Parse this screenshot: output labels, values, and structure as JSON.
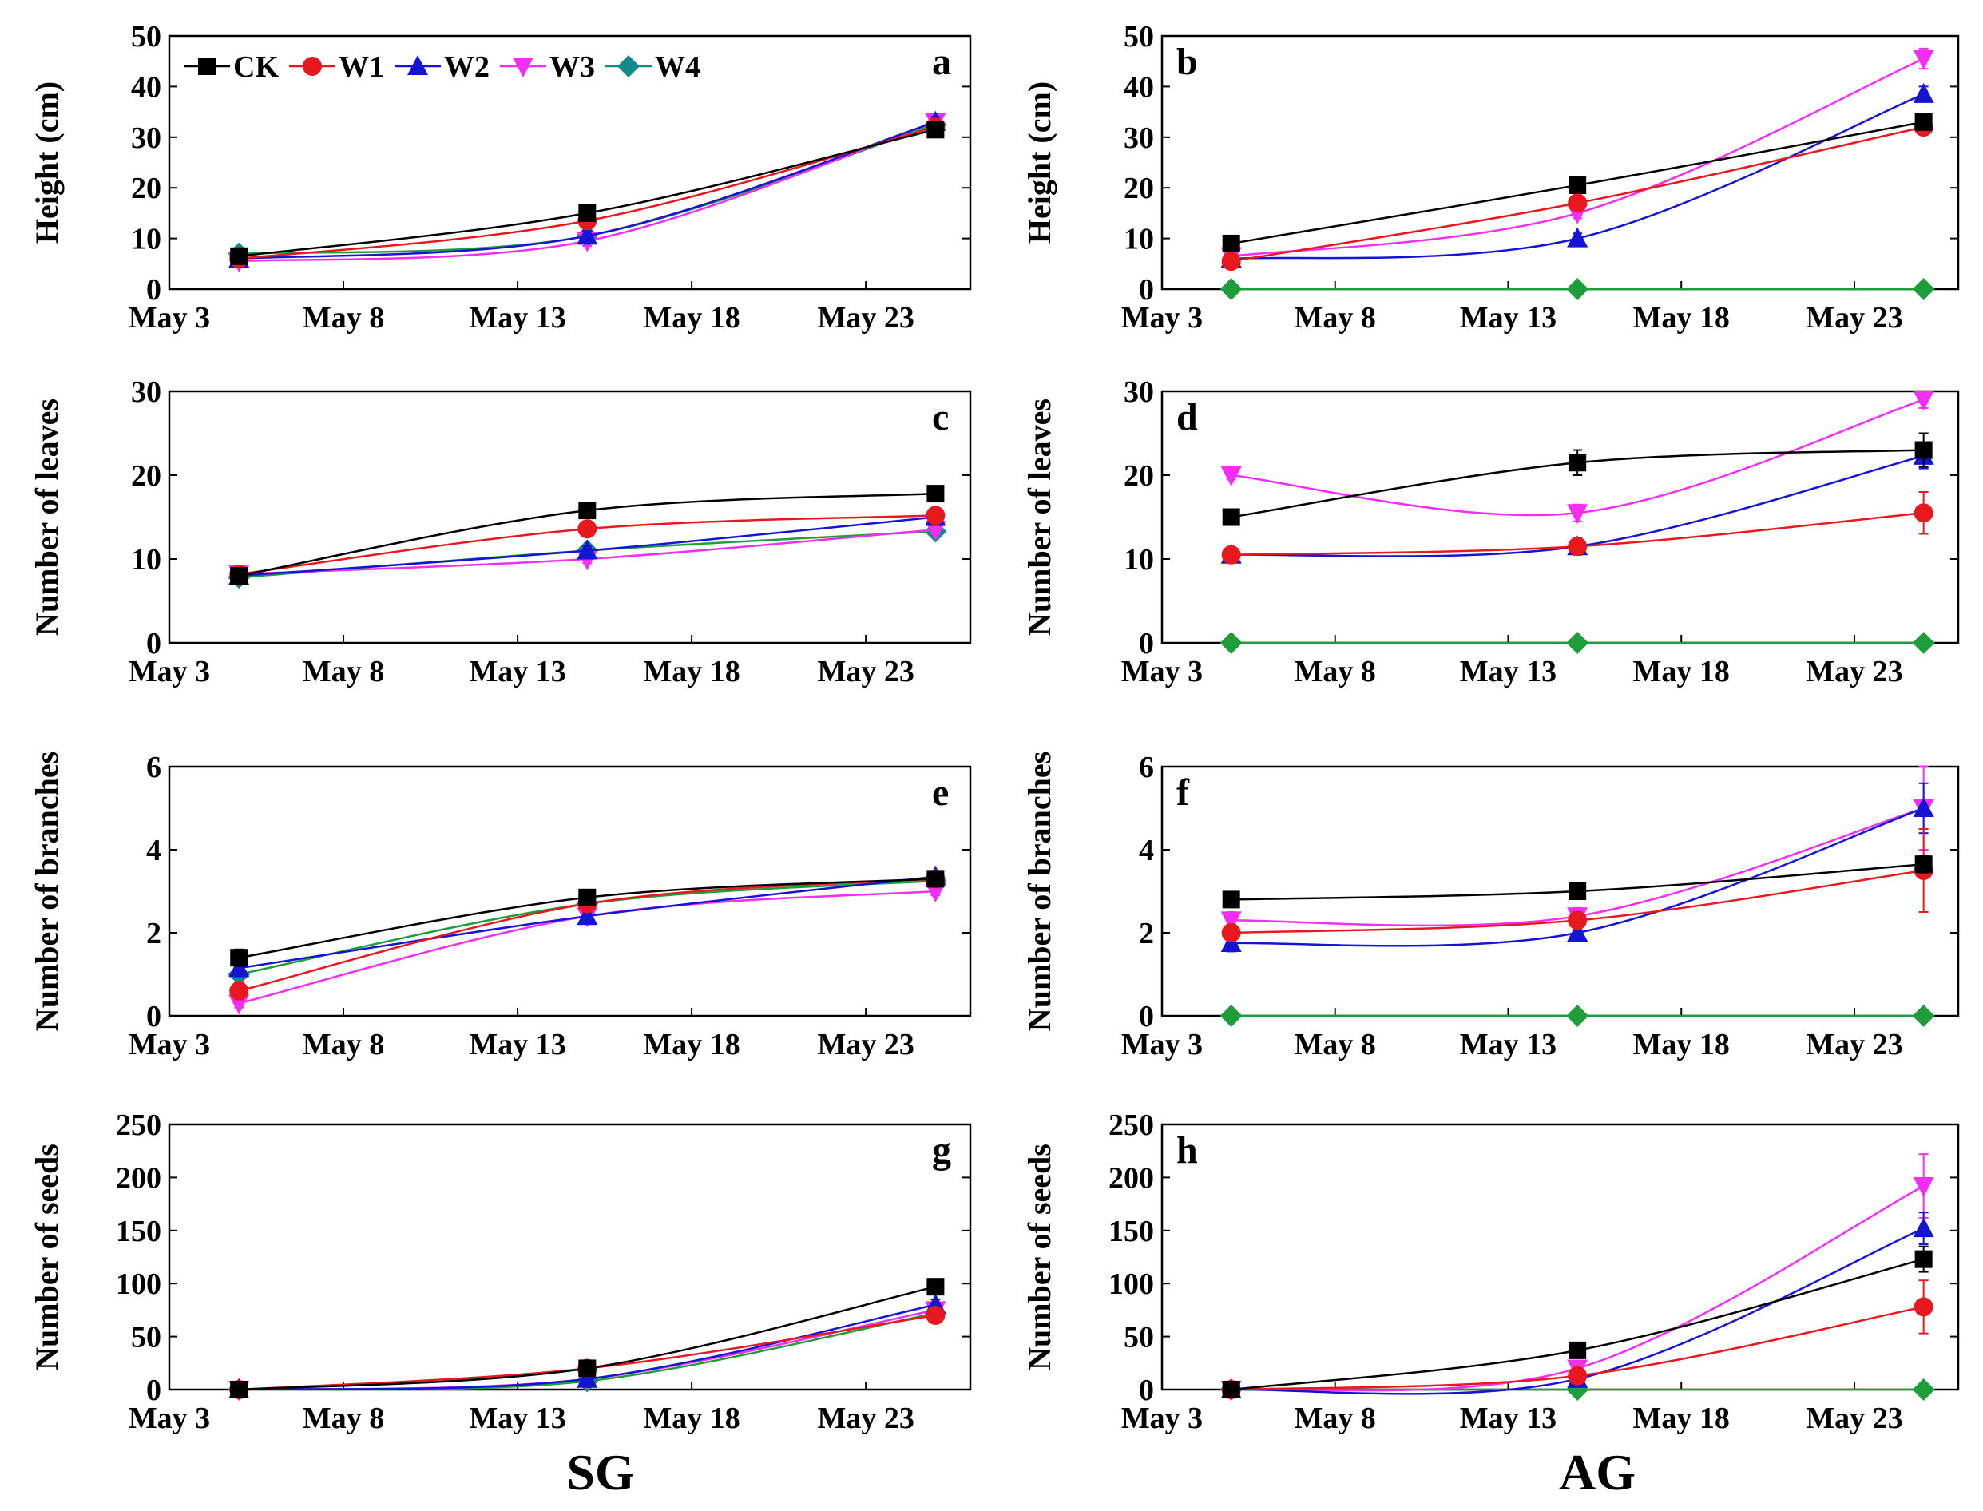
{
  "series_styles": [
    {
      "name": "CK",
      "color": "#000000",
      "marker": "square"
    },
    {
      "name": "W1",
      "color": "#e8191e",
      "marker": "circle"
    },
    {
      "name": "W2",
      "color": "#1414d2",
      "marker": "triangle-up"
    },
    {
      "name": "W3",
      "color": "#f22ef2",
      "marker": "triangle-down"
    },
    {
      "name": "W4",
      "color": "#138a8a",
      "marker": "diamond"
    }
  ],
  "group_labels": {
    "left": "SG",
    "right": "AG"
  },
  "chart_data": [
    {
      "type": "line",
      "panel": "a",
      "column": "left",
      "row": 0,
      "ylabel": "Height (cm)",
      "xlabel": "",
      "xlim": [
        3,
        26
      ],
      "ylim": [
        0,
        50
      ],
      "xticks": [
        3,
        8,
        13,
        18,
        23
      ],
      "xticklabels": [
        "May 3",
        "May 8",
        "May 13",
        "May 18",
        "May 23"
      ],
      "yticks": [
        0,
        10,
        20,
        30,
        40,
        50
      ],
      "yticklabels": [
        "0",
        "10",
        "20",
        "30",
        "40",
        "50"
      ],
      "legend": "top-left",
      "x": [
        5,
        15,
        25
      ],
      "series": [
        {
          "name": "CK",
          "values": [
            6.5,
            15,
            31.5
          ],
          "errors": [
            0.5,
            1,
            1
          ]
        },
        {
          "name": "W1",
          "values": [
            6,
            13.5,
            32
          ],
          "errors": [
            0.5,
            1,
            1
          ]
        },
        {
          "name": "W2",
          "values": [
            6,
            10.5,
            33
          ],
          "errors": [
            0.5,
            1,
            1
          ]
        },
        {
          "name": "W3",
          "values": [
            5.5,
            9.5,
            33
          ],
          "errors": [
            0.5,
            1,
            1
          ]
        },
        {
          "name": "W4",
          "values": [
            7,
            10.5,
            32.5
          ],
          "errors": [
            0.5,
            1,
            1
          ]
        }
      ]
    },
    {
      "type": "line",
      "panel": "b",
      "column": "right",
      "row": 0,
      "ylabel": "Height (cm)",
      "xlabel": "",
      "xlim": [
        3,
        26
      ],
      "ylim": [
        0,
        50
      ],
      "xticks": [
        3,
        8,
        13,
        18,
        23
      ],
      "xticklabels": [
        "May 3",
        "May 8",
        "May 13",
        "May 18",
        "May 23"
      ],
      "yticks": [
        0,
        10,
        20,
        30,
        40,
        50
      ],
      "yticklabels": [
        "0",
        "10",
        "20",
        "30",
        "40",
        "50"
      ],
      "x": [
        5,
        15,
        25
      ],
      "series": [
        {
          "name": "CK",
          "values": [
            9,
            20.5,
            33
          ],
          "errors": [
            0.5,
            1,
            1
          ]
        },
        {
          "name": "W1",
          "values": [
            5.5,
            17,
            32
          ],
          "errors": [
            0.5,
            1,
            1
          ]
        },
        {
          "name": "W2",
          "values": [
            6,
            10,
            38.5
          ],
          "errors": [
            0.5,
            1,
            1.5
          ]
        },
        {
          "name": "W3",
          "values": [
            6.5,
            15,
            45.5
          ],
          "errors": [
            0.5,
            1,
            2
          ]
        },
        {
          "name": "W4",
          "values": [
            0,
            0,
            0
          ],
          "errors": [
            0,
            0,
            0
          ]
        }
      ]
    },
    {
      "type": "line",
      "panel": "c",
      "column": "left",
      "row": 1,
      "ylabel": "Number of leaves",
      "xlabel": "",
      "xlim": [
        3,
        26
      ],
      "ylim": [
        0,
        30
      ],
      "xticks": [
        3,
        8,
        13,
        18,
        23
      ],
      "xticklabels": [
        "May 3",
        "May 8",
        "May 13",
        "May 18",
        "May 23"
      ],
      "yticks": [
        0,
        10,
        20,
        30
      ],
      "yticklabels": [
        "0",
        "10",
        "20",
        "30"
      ],
      "x": [
        5,
        15,
        25
      ],
      "series": [
        {
          "name": "CK",
          "values": [
            8,
            15.8,
            17.8
          ],
          "errors": [
            0.3,
            0.5,
            0.5
          ]
        },
        {
          "name": "W1",
          "values": [
            8.2,
            13.6,
            15.2
          ],
          "errors": [
            0.3,
            0.5,
            0.5
          ]
        },
        {
          "name": "W2",
          "values": [
            8,
            11,
            15
          ],
          "errors": [
            0.3,
            0.5,
            0.5
          ]
        },
        {
          "name": "W3",
          "values": [
            8.2,
            10,
            13.5
          ],
          "errors": [
            0.3,
            0.5,
            0.5
          ]
        },
        {
          "name": "W4",
          "values": [
            7.8,
            11,
            13.3
          ],
          "errors": [
            0.3,
            0.5,
            0.5
          ]
        }
      ]
    },
    {
      "type": "line",
      "panel": "d",
      "column": "right",
      "row": 1,
      "ylabel": "Number of leaves",
      "xlabel": "",
      "xlim": [
        3,
        26
      ],
      "ylim": [
        0,
        30
      ],
      "xticks": [
        3,
        8,
        13,
        18,
        23
      ],
      "xticklabels": [
        "May 3",
        "May 8",
        "May 13",
        "May 18",
        "May 23"
      ],
      "yticks": [
        0,
        10,
        20,
        30
      ],
      "yticklabels": [
        "0",
        "10",
        "20",
        "30"
      ],
      "x": [
        5,
        15,
        25
      ],
      "series": [
        {
          "name": "CK",
          "values": [
            15,
            21.5,
            23
          ],
          "errors": [
            0.5,
            1.5,
            2
          ]
        },
        {
          "name": "W1",
          "values": [
            10.5,
            11.5,
            15.5
          ],
          "errors": [
            0.5,
            1,
            2.5
          ]
        },
        {
          "name": "W2",
          "values": [
            10.5,
            11.5,
            22.3
          ],
          "errors": [
            0.5,
            1,
            1.5
          ]
        },
        {
          "name": "W3",
          "values": [
            20,
            15.5,
            29
          ],
          "errors": [
            0.5,
            1,
            1
          ]
        },
        {
          "name": "W4",
          "values": [
            0,
            0,
            0
          ],
          "errors": [
            0,
            0,
            0
          ]
        }
      ]
    },
    {
      "type": "line",
      "panel": "e",
      "column": "left",
      "row": 2,
      "ylabel": "Number of branches",
      "xlabel": "",
      "xlim": [
        3,
        26
      ],
      "ylim": [
        0,
        6
      ],
      "xticks": [
        3,
        8,
        13,
        18,
        23
      ],
      "xticklabels": [
        "May 3",
        "May 8",
        "May 13",
        "May 18",
        "May 23"
      ],
      "yticks": [
        0,
        2,
        4,
        6
      ],
      "yticklabels": [
        "0",
        "2",
        "4",
        "6"
      ],
      "x": [
        5,
        15,
        25
      ],
      "series": [
        {
          "name": "CK",
          "values": [
            1.4,
            2.85,
            3.3
          ],
          "errors": [
            0.2,
            0.1,
            0.1
          ]
        },
        {
          "name": "W1",
          "values": [
            0.6,
            2.7,
            3.3
          ],
          "errors": [
            0.2,
            0.1,
            0.1
          ]
        },
        {
          "name": "W2",
          "values": [
            1.15,
            2.4,
            3.35
          ],
          "errors": [
            0.2,
            0.1,
            0.1
          ]
        },
        {
          "name": "W3",
          "values": [
            0.3,
            2.4,
            3.0
          ],
          "errors": [
            0.1,
            0.1,
            0.1
          ]
        },
        {
          "name": "W4",
          "values": [
            1.0,
            2.7,
            3.25
          ],
          "errors": [
            0.2,
            0.1,
            0.1
          ]
        }
      ]
    },
    {
      "type": "line",
      "panel": "f",
      "column": "right",
      "row": 2,
      "ylabel": "Number of branches",
      "xlabel": "",
      "xlim": [
        3,
        26
      ],
      "ylim": [
        0,
        6
      ],
      "xticks": [
        3,
        8,
        13,
        18,
        23
      ],
      "xticklabels": [
        "May 3",
        "May 8",
        "May 13",
        "May 18",
        "May 23"
      ],
      "yticks": [
        0,
        2,
        4,
        6
      ],
      "yticklabels": [
        "0",
        "2",
        "4",
        "6"
      ],
      "x": [
        5,
        15,
        25
      ],
      "series": [
        {
          "name": "CK",
          "values": [
            2.8,
            3.0,
            3.65
          ],
          "errors": [
            0.1,
            0.1,
            0.2
          ]
        },
        {
          "name": "W1",
          "values": [
            2.0,
            2.3,
            3.5
          ],
          "errors": [
            0.2,
            0.2,
            1.0
          ]
        },
        {
          "name": "W2",
          "values": [
            1.75,
            2.0,
            5.0
          ],
          "errors": [
            0.2,
            0.1,
            0.6
          ]
        },
        {
          "name": "W3",
          "values": [
            2.3,
            2.4,
            5.0
          ],
          "errors": [
            0.2,
            0.2,
            1.0
          ]
        },
        {
          "name": "W4",
          "values": [
            0,
            0,
            0
          ],
          "errors": [
            0,
            0,
            0
          ]
        }
      ]
    },
    {
      "type": "line",
      "panel": "g",
      "column": "left",
      "row": 3,
      "ylabel": "Number of seeds",
      "xlabel": "SG",
      "xlim": [
        3,
        26
      ],
      "ylim": [
        0,
        250
      ],
      "xticks": [
        3,
        8,
        13,
        18,
        23
      ],
      "xticklabels": [
        "May 3",
        "May 8",
        "May 13",
        "May 18",
        "May 23"
      ],
      "yticks": [
        0,
        50,
        100,
        150,
        200,
        250
      ],
      "yticklabels": [
        "0",
        "50",
        "100",
        "150",
        "200",
        "250"
      ],
      "x": [
        5,
        15,
        25
      ],
      "series": [
        {
          "name": "CK",
          "values": [
            0,
            20,
            97
          ],
          "errors": [
            0,
            3,
            6
          ]
        },
        {
          "name": "W1",
          "values": [
            0,
            20,
            70
          ],
          "errors": [
            0,
            3,
            5
          ]
        },
        {
          "name": "W2",
          "values": [
            0,
            10,
            80
          ],
          "errors": [
            0,
            3,
            5
          ]
        },
        {
          "name": "W3",
          "values": [
            0,
            10,
            75
          ],
          "errors": [
            0,
            3,
            5
          ]
        },
        {
          "name": "W4",
          "values": [
            0,
            8,
            72
          ],
          "errors": [
            0,
            3,
            5
          ]
        }
      ]
    },
    {
      "type": "line",
      "panel": "h",
      "column": "right",
      "row": 3,
      "ylabel": "Number of seeds",
      "xlabel": "AG",
      "xlim": [
        3,
        26
      ],
      "ylim": [
        0,
        250
      ],
      "xticks": [
        3,
        8,
        13,
        18,
        23
      ],
      "xticklabels": [
        "May 3",
        "May 8",
        "May 13",
        "May 18",
        "May 23"
      ],
      "yticks": [
        0,
        50,
        100,
        150,
        200,
        250
      ],
      "yticklabels": [
        "0",
        "50",
        "100",
        "150",
        "200",
        "250"
      ],
      "x": [
        5,
        15,
        25
      ],
      "series": [
        {
          "name": "CK",
          "values": [
            0,
            37,
            123
          ],
          "errors": [
            0,
            5,
            12
          ]
        },
        {
          "name": "W1",
          "values": [
            0,
            13,
            78
          ],
          "errors": [
            0,
            3,
            25
          ]
        },
        {
          "name": "W2",
          "values": [
            0,
            10,
            152
          ],
          "errors": [
            0,
            3,
            15
          ]
        },
        {
          "name": "W3",
          "values": [
            0,
            20,
            192
          ],
          "errors": [
            0,
            5,
            30
          ]
        },
        {
          "name": "W4",
          "values": [
            0,
            0,
            0
          ],
          "errors": [
            0,
            0,
            0
          ]
        }
      ]
    }
  ]
}
